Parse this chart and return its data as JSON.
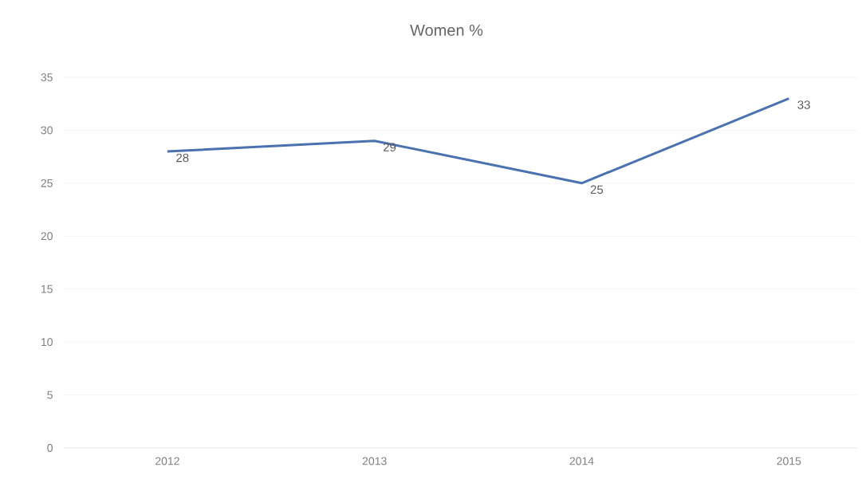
{
  "chart_data": {
    "type": "line",
    "title": "Women %",
    "categories": [
      "2012",
      "2013",
      "2014",
      "2015"
    ],
    "values": [
      28,
      29,
      25,
      33
    ],
    "color": "#4a72b0",
    "ylim": [
      0,
      35
    ],
    "yticks": [
      0,
      5,
      10,
      15,
      20,
      25,
      30,
      35
    ],
    "grid": "y",
    "data_labels": true,
    "marker": "none"
  }
}
